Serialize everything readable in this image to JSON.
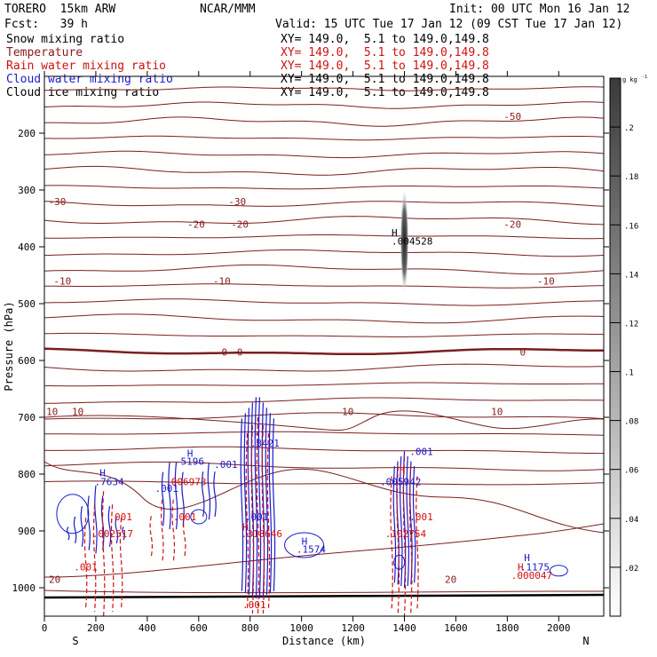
{
  "header": {
    "model": "TORERO  15km ARW",
    "center": "NCAR/MMM",
    "init": "Init: 00 UTC Mon 16 Jan 12",
    "fcst": "Fcst:   39 h",
    "valid": "Valid: 15 UTC Tue 17 Jan 12 (09 CST Tue 17 Jan 12)"
  },
  "legend": [
    {
      "name": "Snow mixing ratio",
      "xy": "XY= 149.0,  5.1 to 149.0,149.8",
      "color": "#000000"
    },
    {
      "name": "Temperature",
      "xy": "XY= 149.0,  5.1 to 149.0,149.8",
      "color": "#8b1a1a"
    },
    {
      "name": "Rain water mixing ratio",
      "xy": "XY= 149.0,  5.1 to 149.0,149.8",
      "color": "#d01010"
    },
    {
      "name": "Cloud water mixing ratio",
      "xy": "XY= 149.0,  5.1 to 149.0,149.8",
      "color": "#1a1acc"
    },
    {
      "name": "Cloud ice mixing ratio",
      "xy": "XY= 149.0,  5.1 to 149.0,149.8",
      "color": "#000000"
    }
  ],
  "chart_data": {
    "type": "contour",
    "xlabel": "Distance (km)",
    "ylabel": "Pressure (hPa)",
    "xlim": [
      0,
      2175
    ],
    "ylim": [
      1050,
      100
    ],
    "x_ticks": [
      0,
      200,
      400,
      600,
      800,
      1000,
      1200,
      1400,
      1600,
      1800,
      2000
    ],
    "y_ticks": [
      200,
      300,
      400,
      500,
      600,
      700,
      800,
      900,
      1000
    ],
    "x_end_labels": {
      "left": "S",
      "right": "N"
    },
    "colorbar": {
      "unit": "g kg",
      "unit_exp": "-1",
      "min": 0,
      "max": 0.22,
      "ticks": [
        0.02,
        0.04,
        0.06,
        0.08,
        0.1,
        0.12,
        0.14,
        0.16,
        0.18,
        0.2
      ],
      "tick_labels": [
        ".02",
        ".04",
        ".06",
        ".08",
        ".1",
        ".12",
        ".14",
        ".16",
        ".18",
        ".2"
      ]
    },
    "temperature_contours": [
      {
        "level": -50,
        "p": 170,
        "label": "-50",
        "label_x": 1820
      },
      {
        "level": -30,
        "p": 320,
        "label": "-30",
        "label_x": 50
      },
      {
        "level": -30,
        "p": 320,
        "label": "-30",
        "label_x": 750
      },
      {
        "level": -20,
        "p": 360,
        "label": "-20",
        "label_x": 590
      },
      {
        "level": -20,
        "p": 360,
        "label": "-20",
        "label_x": 760
      },
      {
        "level": -20,
        "p": 360,
        "label": "-20",
        "label_x": 1820
      },
      {
        "level": -10,
        "p": 460,
        "label": "-10",
        "label_x": 70
      },
      {
        "level": -10,
        "p": 460,
        "label": "-10",
        "label_x": 690
      },
      {
        "level": -10,
        "p": 460,
        "label": "-10",
        "label_x": 1950
      },
      {
        "level": 0,
        "p": 585,
        "label": "0",
        "label_x": 700
      },
      {
        "level": 0,
        "p": 585,
        "label": "0",
        "label_x": 760
      },
      {
        "level": 0,
        "p": 585,
        "label": "0",
        "label_x": 1860
      },
      {
        "level": 10,
        "p": 690,
        "label": "10",
        "label_x": 30
      },
      {
        "level": 10,
        "p": 690,
        "label": "10",
        "label_x": 130
      },
      {
        "level": 10,
        "p": 690,
        "label": "10",
        "label_x": 1180
      },
      {
        "level": 10,
        "p": 690,
        "label": "10",
        "label_x": 1760
      },
      {
        "level": 20,
        "p": 985,
        "label": "20",
        "label_x": 40
      },
      {
        "level": 20,
        "p": 985,
        "label": "20",
        "label_x": 1580
      }
    ],
    "annotations": [
      {
        "text": "H",
        "x": 1350,
        "p": 375,
        "color": "#000000"
      },
      {
        "text": ".004528",
        "x": 1350,
        "p": 390,
        "color": "#000000"
      },
      {
        "text": "H",
        "x": 815,
        "p": 730,
        "color": "#1a1acc"
      },
      {
        "text": ".8421",
        "x": 800,
        "p": 745,
        "color": "#1a1acc"
      },
      {
        "text": ".001",
        "x": 1420,
        "p": 760,
        "color": "#1a1acc"
      },
      {
        "text": ".001",
        "x": 660,
        "p": 783,
        "color": "#1a1acc"
      },
      {
        "text": "H",
        "x": 555,
        "p": 763,
        "color": "#1a1acc"
      },
      {
        "text": "5196",
        "x": 530,
        "p": 777,
        "color": "#1a1acc"
      },
      {
        "text": "H",
        "x": 1380,
        "p": 792,
        "color": "#d01010"
      },
      {
        "text": "H",
        "x": 215,
        "p": 798,
        "color": "#1a1acc"
      },
      {
        "text": ".7634",
        "x": 195,
        "p": 813,
        "color": "#1a1acc"
      },
      {
        "text": ".006973",
        "x": 470,
        "p": 813,
        "color": "#d01010"
      },
      {
        "text": ".005942",
        "x": 1305,
        "p": 813,
        "color": "#1a1acc"
      },
      {
        "text": ".001",
        "x": 430,
        "p": 825,
        "color": "#1a1acc"
      },
      {
        "text": ".001",
        "x": 250,
        "p": 875,
        "color": "#d01010"
      },
      {
        "text": ".001",
        "x": 500,
        "p": 875,
        "color": "#d01010"
      },
      {
        "text": ".001",
        "x": 780,
        "p": 875,
        "color": "#1a1acc"
      },
      {
        "text": ".001",
        "x": 1420,
        "p": 875,
        "color": "#d01010"
      },
      {
        "text": "H",
        "x": 770,
        "p": 893,
        "color": "#d01010"
      },
      {
        "text": ".002517",
        "x": 185,
        "p": 905,
        "color": "#d01010"
      },
      {
        "text": ".318646",
        "x": 765,
        "p": 905,
        "color": "#d01010"
      },
      {
        "text": ".102754",
        "x": 1325,
        "p": 905,
        "color": "#d01010"
      },
      {
        "text": "H",
        "x": 1000,
        "p": 918,
        "color": "#1a1acc"
      },
      {
        "text": ".1574",
        "x": 980,
        "p": 932,
        "color": "#1a1acc"
      },
      {
        "text": "H",
        "x": 1865,
        "p": 947,
        "color": "#1a1acc"
      },
      {
        "text": "H",
        "x": 1840,
        "p": 963,
        "color": "#d01010"
      },
      {
        "text": ".1175",
        "x": 1850,
        "p": 963,
        "color": "#1a1acc"
      },
      {
        "text": ".000047",
        "x": 1815,
        "p": 978,
        "color": "#d01010"
      },
      {
        "text": ".001",
        "x": 115,
        "p": 963,
        "color": "#d01010"
      },
      {
        "text": ".001",
        "x": 770,
        "p": 1030,
        "color": "#d01010"
      }
    ]
  }
}
